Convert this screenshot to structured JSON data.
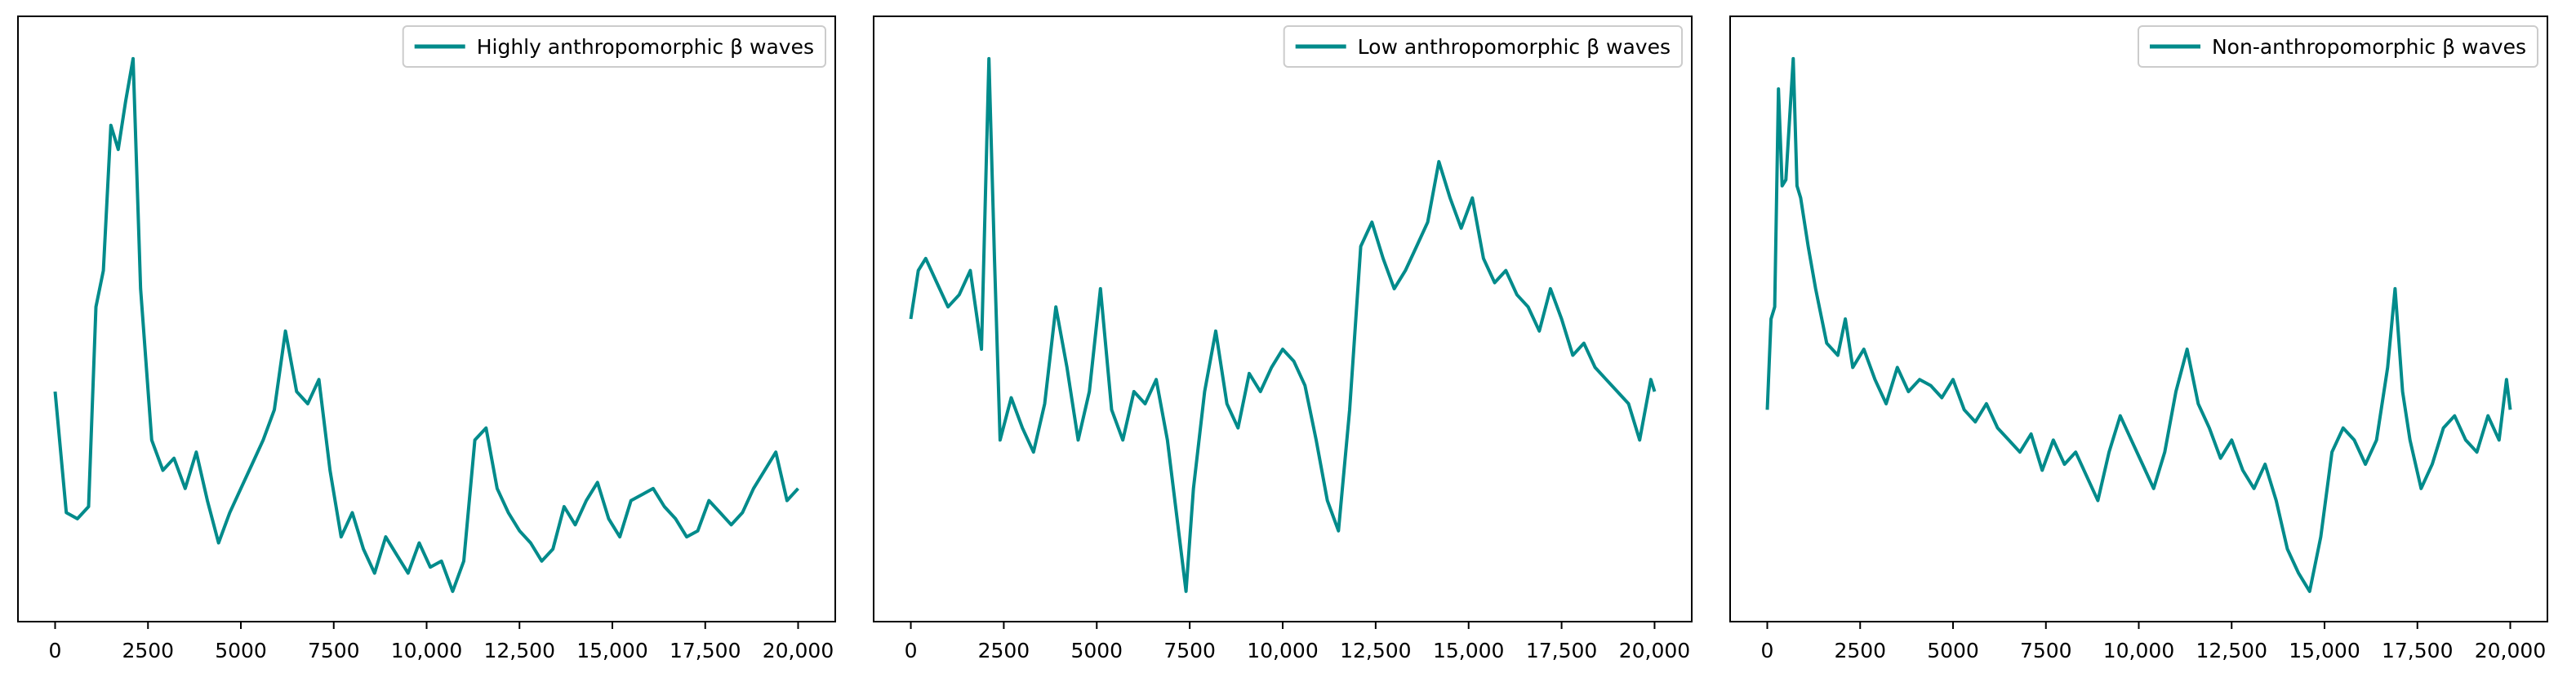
{
  "colors": {
    "series": "#008b8b",
    "axis": "#000000",
    "legend_border": "#cccccc"
  },
  "chart_data": [
    {
      "type": "line",
      "title": "",
      "xlabel": "",
      "ylabel": "",
      "xlim": [
        -1000,
        21000
      ],
      "ylim": [
        0,
        1
      ],
      "x_ticks": [
        0,
        2500,
        5000,
        7500,
        10000,
        12500,
        15000,
        17500,
        20000
      ],
      "x_tick_labels": [
        "0",
        "2500",
        "5000",
        "7500",
        "10,000",
        "12,500",
        "15,000",
        "17,500",
        "20,000"
      ],
      "y_axis_visible": false,
      "grid": false,
      "legend_position": "top-right",
      "series": [
        {
          "name": "Highly anthropomorphic β waves",
          "color": "#008b8b",
          "x": [
            0,
            300,
            600,
            900,
            1100,
            1300,
            1500,
            1700,
            1900,
            2100,
            2300,
            2600,
            2900,
            3200,
            3500,
            3800,
            4100,
            4400,
            4700,
            5000,
            5300,
            5600,
            5900,
            6200,
            6500,
            6800,
            7100,
            7400,
            7700,
            8000,
            8300,
            8600,
            8900,
            9200,
            9500,
            9800,
            10100,
            10400,
            10700,
            11000,
            11300,
            11600,
            11900,
            12200,
            12500,
            12800,
            13100,
            13400,
            13700,
            14000,
            14300,
            14600,
            14900,
            15200,
            15500,
            15800,
            16100,
            16400,
            16700,
            17000,
            17300,
            17600,
            17900,
            18200,
            18500,
            18800,
            19100,
            19400,
            19700,
            20000
          ],
          "y": [
            0.38,
            0.18,
            0.17,
            0.19,
            0.52,
            0.58,
            0.82,
            0.78,
            0.86,
            0.93,
            0.55,
            0.3,
            0.25,
            0.27,
            0.22,
            0.28,
            0.2,
            0.13,
            0.18,
            0.22,
            0.26,
            0.3,
            0.35,
            0.48,
            0.38,
            0.36,
            0.4,
            0.25,
            0.14,
            0.18,
            0.12,
            0.08,
            0.14,
            0.11,
            0.08,
            0.13,
            0.09,
            0.1,
            0.05,
            0.1,
            0.3,
            0.32,
            0.22,
            0.18,
            0.15,
            0.13,
            0.1,
            0.12,
            0.19,
            0.16,
            0.2,
            0.23,
            0.17,
            0.14,
            0.2,
            0.21,
            0.22,
            0.19,
            0.17,
            0.14,
            0.15,
            0.2,
            0.18,
            0.16,
            0.18,
            0.22,
            0.25,
            0.28,
            0.2,
            0.22
          ]
        }
      ]
    },
    {
      "type": "line",
      "title": "",
      "xlabel": "",
      "ylabel": "",
      "xlim": [
        -1000,
        21000
      ],
      "ylim": [
        0,
        1
      ],
      "x_ticks": [
        0,
        2500,
        5000,
        7500,
        10000,
        12500,
        15000,
        17500,
        20000
      ],
      "x_tick_labels": [
        "0",
        "2500",
        "5000",
        "7500",
        "10,000",
        "12,500",
        "15,000",
        "17,500",
        "20,000"
      ],
      "y_axis_visible": false,
      "grid": false,
      "legend_position": "top-right",
      "series": [
        {
          "name": "Low anthropomorphic β waves",
          "color": "#008b8b",
          "x": [
            0,
            200,
            400,
            700,
            1000,
            1300,
            1600,
            1900,
            2100,
            2250,
            2400,
            2700,
            3000,
            3300,
            3600,
            3900,
            4200,
            4500,
            4800,
            5100,
            5400,
            5700,
            6000,
            6300,
            6600,
            6900,
            7200,
            7400,
            7600,
            7900,
            8200,
            8500,
            8800,
            9100,
            9400,
            9700,
            10000,
            10300,
            10600,
            10900,
            11200,
            11500,
            11800,
            12100,
            12400,
            12700,
            13000,
            13300,
            13600,
            13900,
            14200,
            14500,
            14800,
            15100,
            15400,
            15700,
            16000,
            16300,
            16600,
            16900,
            17200,
            17500,
            17800,
            18100,
            18400,
            18700,
            19000,
            19300,
            19600,
            19900,
            20000
          ],
          "y": [
            0.5,
            0.58,
            0.6,
            0.56,
            0.52,
            0.54,
            0.58,
            0.45,
            0.93,
            0.6,
            0.3,
            0.37,
            0.32,
            0.28,
            0.36,
            0.52,
            0.42,
            0.3,
            0.38,
            0.55,
            0.35,
            0.3,
            0.38,
            0.36,
            0.4,
            0.3,
            0.15,
            0.05,
            0.22,
            0.38,
            0.48,
            0.36,
            0.32,
            0.41,
            0.38,
            0.42,
            0.45,
            0.43,
            0.39,
            0.3,
            0.2,
            0.15,
            0.35,
            0.62,
            0.66,
            0.6,
            0.55,
            0.58,
            0.62,
            0.66,
            0.76,
            0.7,
            0.65,
            0.7,
            0.6,
            0.56,
            0.58,
            0.54,
            0.52,
            0.48,
            0.55,
            0.5,
            0.44,
            0.46,
            0.42,
            0.4,
            0.38,
            0.36,
            0.3,
            0.4,
            0.38
          ]
        }
      ]
    },
    {
      "type": "line",
      "title": "",
      "xlabel": "",
      "ylabel": "",
      "xlim": [
        -1000,
        21000
      ],
      "ylim": [
        0,
        1
      ],
      "x_ticks": [
        0,
        2500,
        5000,
        7500,
        10000,
        12500,
        15000,
        17500,
        20000
      ],
      "x_tick_labels": [
        "0",
        "2500",
        "5000",
        "7500",
        "10,000",
        "12,500",
        "15,000",
        "17,500",
        "20,000"
      ],
      "y_axis_visible": false,
      "grid": false,
      "legend_position": "top-right",
      "series": [
        {
          "name": "Non-anthropomorphic β waves",
          "color": "#008b8b",
          "x": [
            0,
            100,
            200,
            300,
            400,
            500,
            700,
            800,
            900,
            1100,
            1300,
            1600,
            1900,
            2100,
            2300,
            2600,
            2900,
            3200,
            3500,
            3800,
            4100,
            4400,
            4700,
            5000,
            5300,
            5600,
            5900,
            6200,
            6500,
            6800,
            7100,
            7400,
            7700,
            8000,
            8300,
            8600,
            8900,
            9200,
            9500,
            9800,
            10100,
            10400,
            10700,
            11000,
            11300,
            11600,
            11900,
            12200,
            12500,
            12800,
            13100,
            13400,
            13700,
            14000,
            14300,
            14600,
            14900,
            15200,
            15500,
            15800,
            16100,
            16400,
            16700,
            16900,
            17100,
            17300,
            17600,
            17900,
            18200,
            18500,
            18800,
            19100,
            19400,
            19700,
            19900,
            20000
          ],
          "y": [
            0.35,
            0.5,
            0.52,
            0.88,
            0.72,
            0.73,
            0.93,
            0.72,
            0.7,
            0.62,
            0.55,
            0.46,
            0.44,
            0.5,
            0.42,
            0.45,
            0.4,
            0.36,
            0.42,
            0.38,
            0.4,
            0.39,
            0.37,
            0.4,
            0.35,
            0.33,
            0.36,
            0.32,
            0.3,
            0.28,
            0.31,
            0.25,
            0.3,
            0.26,
            0.28,
            0.24,
            0.2,
            0.28,
            0.34,
            0.3,
            0.26,
            0.22,
            0.28,
            0.38,
            0.45,
            0.36,
            0.32,
            0.27,
            0.3,
            0.25,
            0.22,
            0.26,
            0.2,
            0.12,
            0.08,
            0.05,
            0.14,
            0.28,
            0.32,
            0.3,
            0.26,
            0.3,
            0.42,
            0.55,
            0.38,
            0.3,
            0.22,
            0.26,
            0.32,
            0.34,
            0.3,
            0.28,
            0.34,
            0.3,
            0.4,
            0.35
          ]
        }
      ]
    }
  ]
}
